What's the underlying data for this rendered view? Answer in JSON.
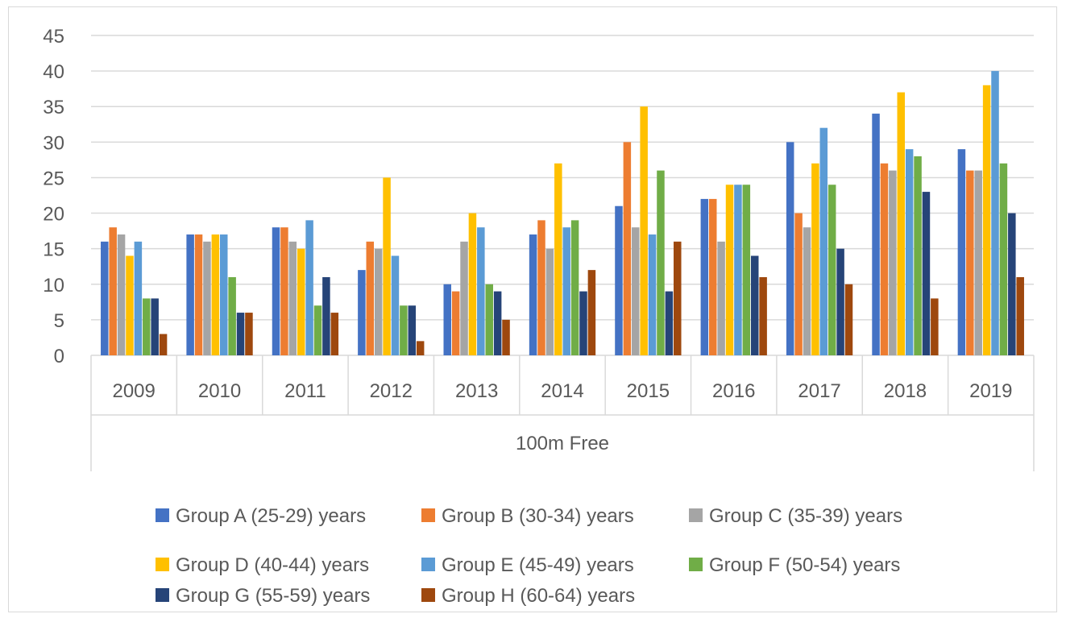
{
  "chart_data": {
    "type": "bar",
    "title": "",
    "xlabel": "100m Free",
    "ylabel": "",
    "ylim": [
      0,
      45
    ],
    "yticks": [
      0,
      5,
      10,
      15,
      20,
      25,
      30,
      35,
      40,
      45
    ],
    "grid": true,
    "legend_position": "bottom",
    "categories": [
      "2009",
      "2010",
      "2011",
      "2012",
      "2013",
      "2014",
      "2015",
      "2016",
      "2017",
      "2018",
      "2019"
    ],
    "series": [
      {
        "name": "Group A (25-29) years",
        "color": "#4472c4",
        "values": [
          16,
          17,
          18,
          12,
          10,
          17,
          21,
          22,
          30,
          34,
          29
        ]
      },
      {
        "name": "Group B (30-34) years",
        "color": "#ed7d31",
        "values": [
          18,
          17,
          18,
          16,
          9,
          19,
          30,
          22,
          20,
          27,
          26
        ]
      },
      {
        "name": "Group C (35-39) years",
        "color": "#a5a5a5",
        "values": [
          17,
          16,
          16,
          15,
          16,
          15,
          18,
          16,
          18,
          26,
          26
        ]
      },
      {
        "name": "Group D (40-44) years",
        "color": "#ffc000",
        "values": [
          14,
          17,
          15,
          25,
          20,
          27,
          35,
          24,
          27,
          37,
          38
        ]
      },
      {
        "name": "Group E (45-49) years",
        "color": "#5b9bd5",
        "values": [
          16,
          17,
          19,
          14,
          18,
          18,
          17,
          24,
          32,
          29,
          40
        ]
      },
      {
        "name": "Group F (50-54) years",
        "color": "#70ad47",
        "values": [
          8,
          11,
          7,
          7,
          10,
          19,
          26,
          24,
          24,
          28,
          27
        ]
      },
      {
        "name": "Group G (55-59) years",
        "color": "#264478",
        "values": [
          8,
          6,
          11,
          7,
          9,
          9,
          9,
          14,
          15,
          23,
          20
        ]
      },
      {
        "name": "Group H (60-64) years",
        "color": "#9e480e",
        "values": [
          3,
          6,
          6,
          2,
          5,
          12,
          16,
          11,
          10,
          8,
          11
        ]
      }
    ]
  }
}
